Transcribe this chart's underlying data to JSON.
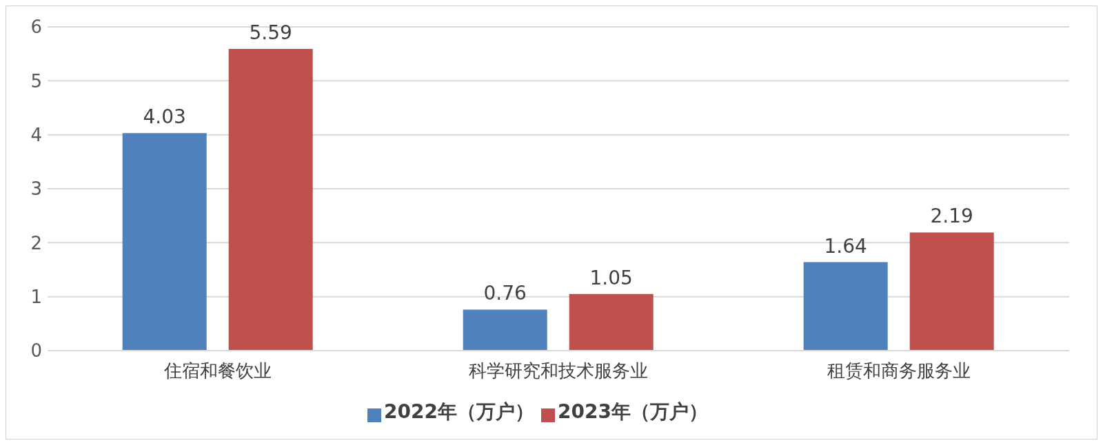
{
  "chart_data": {
    "type": "bar",
    "categories": [
      "住宿和餐饮业",
      "科学研究和技术服务业",
      "租赁和商务服务业"
    ],
    "series": [
      {
        "name": "2022年（万户）",
        "color": "#4f81bd",
        "values": [
          4.03,
          0.76,
          1.64
        ]
      },
      {
        "name": "2023年（万户）",
        "color": "#c0504d",
        "values": [
          5.59,
          1.05,
          2.19
        ]
      }
    ],
    "ylim": [
      0,
      6
    ],
    "yticks": [
      0,
      1,
      2,
      3,
      4,
      5,
      6
    ],
    "grid": "y",
    "legend": "bottom",
    "data_labels": true
  }
}
